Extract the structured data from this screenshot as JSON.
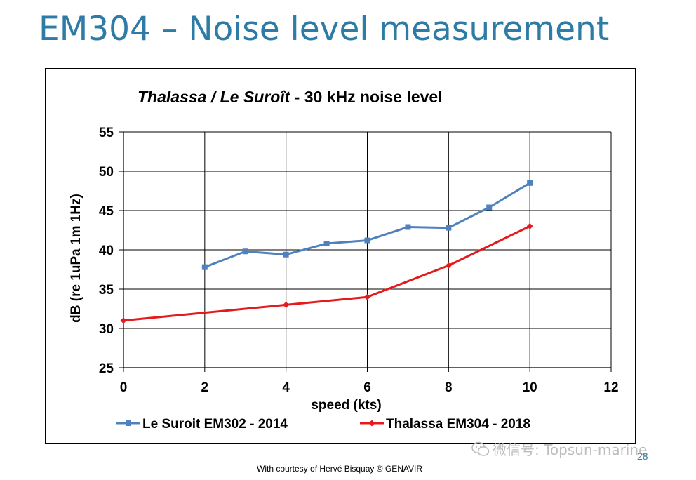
{
  "slide": {
    "title": "EM304 – Noise level measurement",
    "credit": "With courtesy of Hervé Bisquay © GENAVIR",
    "page_number": "28",
    "watermark": "微信号: Topsun-marine"
  },
  "chart_data": {
    "type": "line",
    "title": {
      "italic_part": "Thalassa / Le Suroît",
      "regular_part": " - 30 kHz  noise level"
    },
    "xlabel": "speed (kts)",
    "ylabel": "dB (re 1uPa 1m 1Hz)",
    "xlim": [
      0,
      12
    ],
    "ylim": [
      25,
      55
    ],
    "x_ticks": [
      0,
      2,
      4,
      6,
      8,
      10,
      12
    ],
    "y_ticks": [
      25,
      30,
      35,
      40,
      45,
      50,
      55
    ],
    "grid": true,
    "legend_position": "bottom",
    "series": [
      {
        "name": "Le Suroit EM302 - 2014",
        "color": "#4f81bd",
        "marker": "square",
        "x": [
          2,
          3,
          4,
          5,
          6,
          7,
          8,
          9,
          10
        ],
        "y": [
          37.8,
          39.8,
          39.4,
          40.8,
          41.2,
          42.9,
          42.8,
          45.4,
          48.5
        ]
      },
      {
        "name": "Thalassa EM304 - 2018",
        "color": "#e41a1c",
        "marker": "diamond",
        "x": [
          0,
          4,
          6,
          8,
          10
        ],
        "y": [
          31,
          33,
          34,
          38,
          43
        ]
      }
    ]
  }
}
